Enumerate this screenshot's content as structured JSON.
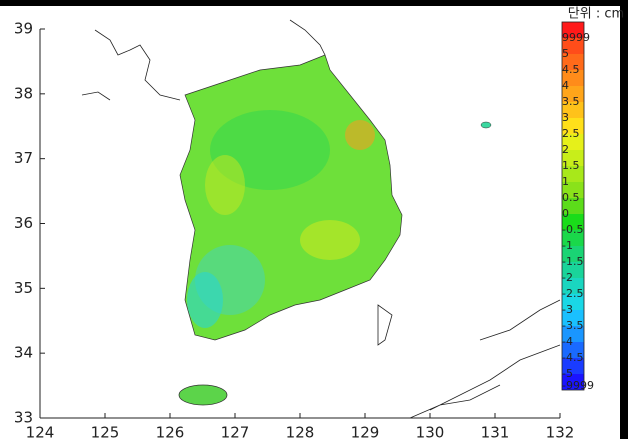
{
  "map": {
    "xlim": [
      124,
      132
    ],
    "ylim": [
      33,
      39
    ],
    "xticks": [
      124,
      125,
      126,
      127,
      128,
      129,
      130,
      131,
      132
    ],
    "yticks": [
      33,
      34,
      35,
      36,
      37,
      38,
      39
    ],
    "colorbar": {
      "unit_label": "단위 : cm",
      "labels": [
        9999,
        5,
        4.5,
        4,
        3.5,
        3,
        2.5,
        2,
        1.5,
        1,
        0.5,
        0,
        -0.5,
        -1,
        -1.5,
        -2,
        -2.5,
        -3,
        -3.5,
        -4,
        -4.5,
        -5,
        -9999
      ],
      "colors": [
        "#ff1a1a",
        "#ff4d1a",
        "#ff6a1a",
        "#ff8c1a",
        "#ffa51a",
        "#ffc21a",
        "#ffe01a",
        "#e6f01a",
        "#c8ee1a",
        "#a8e81a",
        "#8ae21a",
        "#5cdc1a",
        "#1adc1a",
        "#1ad84a",
        "#1ad474",
        "#1ad49a",
        "#1ad6c0",
        "#1ad8e6",
        "#1ac0ff",
        "#1a96ff",
        "#1a6aff",
        "#1a3cff",
        "#1a14ff"
      ]
    }
  }
}
